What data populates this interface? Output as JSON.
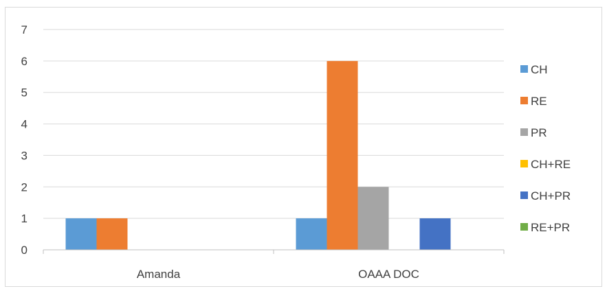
{
  "chart_data": {
    "type": "bar",
    "categories": [
      "Amanda",
      "OAAA DOC"
    ],
    "series": [
      {
        "name": "CH",
        "values": [
          1,
          1
        ],
        "color": "#5b9bd5"
      },
      {
        "name": "RE",
        "values": [
          1,
          6
        ],
        "color": "#ed7d31"
      },
      {
        "name": "PR",
        "values": [
          0,
          2
        ],
        "color": "#a5a5a5"
      },
      {
        "name": "CH+RE",
        "values": [
          0,
          0
        ],
        "color": "#ffc000"
      },
      {
        "name": "CH+PR",
        "values": [
          0,
          1
        ],
        "color": "#4472c4"
      },
      {
        "name": "RE+PR",
        "values": [
          0,
          0
        ],
        "color": "#70ad47"
      }
    ],
    "ylim": [
      0,
      7
    ],
    "yticks": [
      0,
      1,
      2,
      3,
      4,
      5,
      6,
      7
    ],
    "grid": true,
    "legend_position": "right",
    "title": "",
    "xlabel": "",
    "ylabel": ""
  }
}
